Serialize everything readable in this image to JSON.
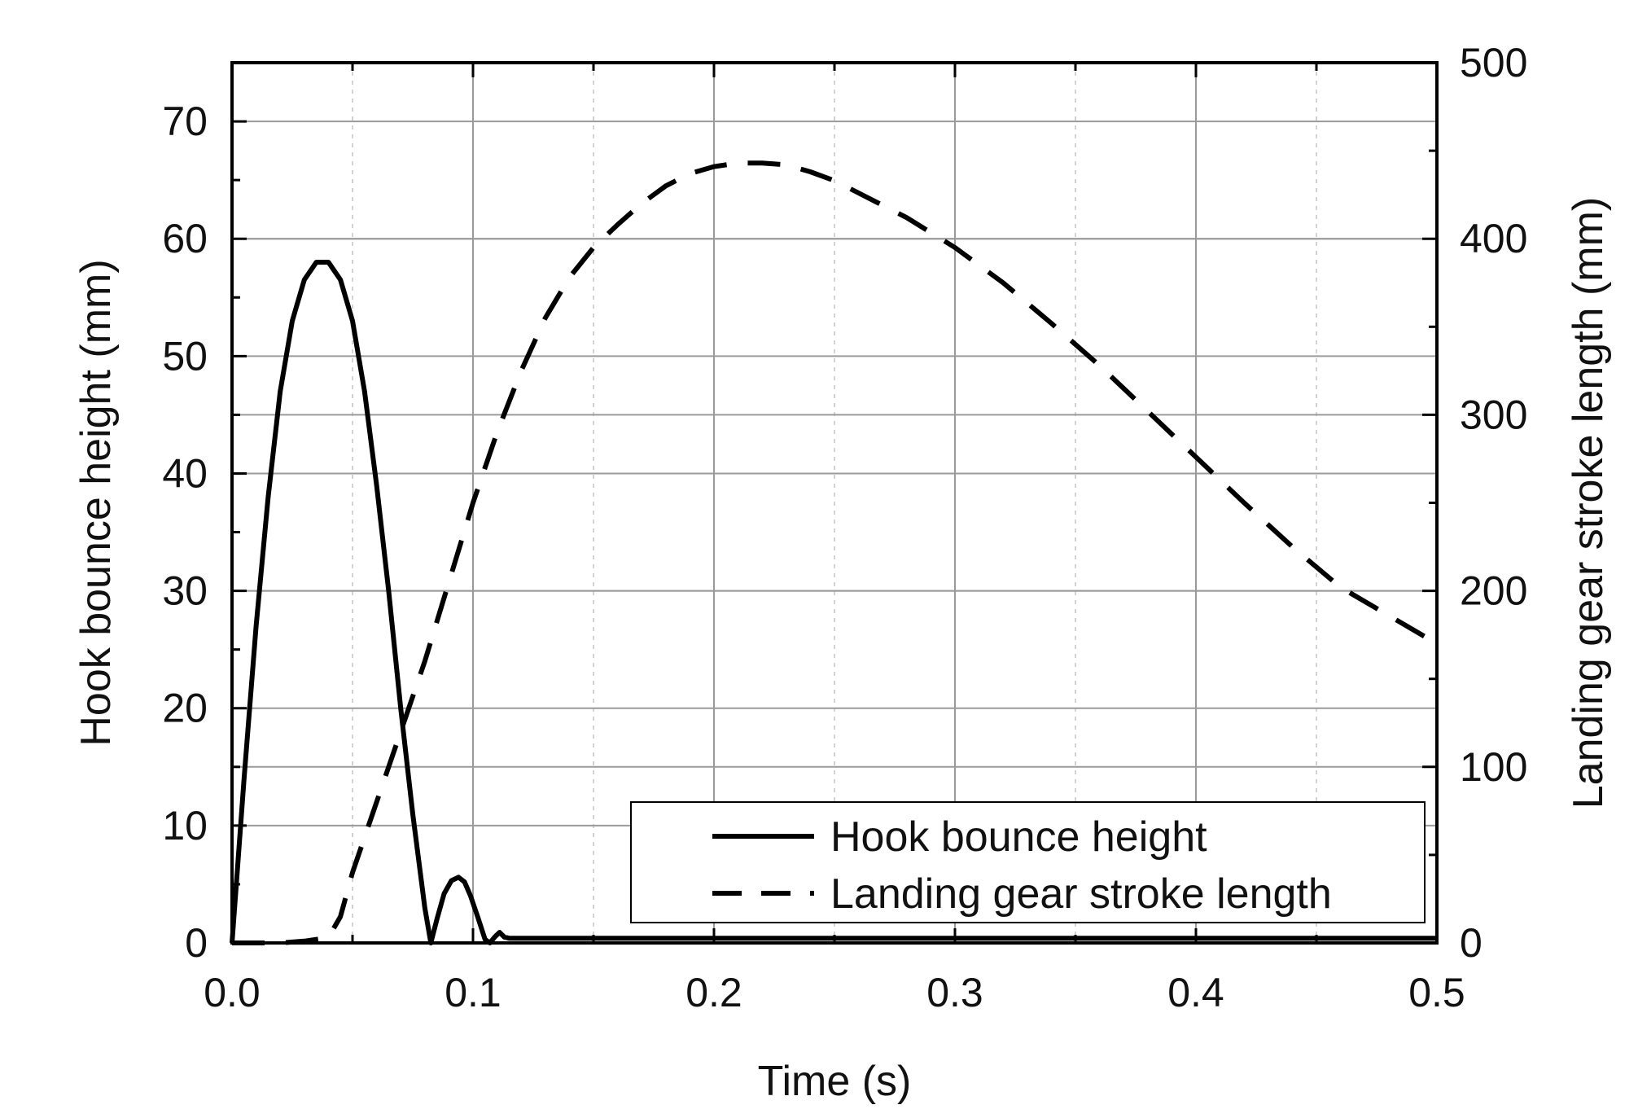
{
  "chart_data": {
    "type": "line",
    "title": "",
    "xlabel": "Time (s)",
    "ylabel_left": "Hook bounce height (mm)",
    "ylabel_right": "Landing gear stroke length (mm)",
    "xlim": [
      0,
      0.5
    ],
    "ylim_left": [
      0,
      75
    ],
    "ylim_right": [
      0,
      500
    ],
    "x_ticks": [
      "0.0",
      "0.1",
      "0.2",
      "0.3",
      "0.4",
      "0.5"
    ],
    "y_ticks_left": [
      "0",
      "10",
      "20",
      "30",
      "40",
      "50",
      "60",
      "70"
    ],
    "y_ticks_right": [
      "0",
      "100",
      "200",
      "300",
      "400",
      "500"
    ],
    "grid": true,
    "legend_position": "lower-right",
    "series": [
      {
        "name": "Hook bounce height",
        "axis": "left",
        "style": "solid",
        "color": "#000000",
        "x": [
          0.0,
          0.005,
          0.01,
          0.015,
          0.02,
          0.025,
          0.03,
          0.035,
          0.04,
          0.045,
          0.05,
          0.055,
          0.06,
          0.065,
          0.07,
          0.075,
          0.08,
          0.0825,
          0.085,
          0.088,
          0.091,
          0.094,
          0.0965,
          0.099,
          0.102,
          0.105,
          0.107,
          0.109,
          0.111,
          0.113,
          0.115,
          0.2,
          0.3,
          0.4,
          0.5
        ],
        "y": [
          0,
          14,
          27,
          38,
          47,
          53,
          56.5,
          58,
          58,
          56.5,
          53,
          47,
          39,
          30,
          20,
          11,
          3,
          0,
          2,
          4.2,
          5.3,
          5.6,
          5.2,
          4.0,
          2.2,
          0.3,
          0,
          0.5,
          0.9,
          0.5,
          0.4,
          0.4,
          0.4,
          0.4,
          0.4
        ]
      },
      {
        "name": "Landing gear stroke length",
        "axis": "right",
        "style": "dashed",
        "color": "#000000",
        "x": [
          0.0,
          0.02,
          0.03,
          0.04,
          0.045,
          0.05,
          0.06,
          0.07,
          0.08,
          0.09,
          0.1,
          0.11,
          0.12,
          0.13,
          0.14,
          0.15,
          0.16,
          0.17,
          0.18,
          0.19,
          0.2,
          0.21,
          0.22,
          0.23,
          0.24,
          0.25,
          0.26,
          0.28,
          0.3,
          0.32,
          0.34,
          0.36,
          0.38,
          0.4,
          0.42,
          0.44,
          0.46,
          0.48,
          0.5
        ],
        "y": [
          0,
          0,
          1,
          3,
          15,
          40,
          80,
          120,
          160,
          205,
          250,
          290,
          325,
          355,
          378,
          395,
          408,
          420,
          430,
          437,
          441,
          443,
          443,
          442,
          438,
          433,
          426,
          412,
          395,
          375,
          352,
          328,
          302,
          276,
          250,
          225,
          202,
          186,
          170
        ]
      }
    ]
  }
}
